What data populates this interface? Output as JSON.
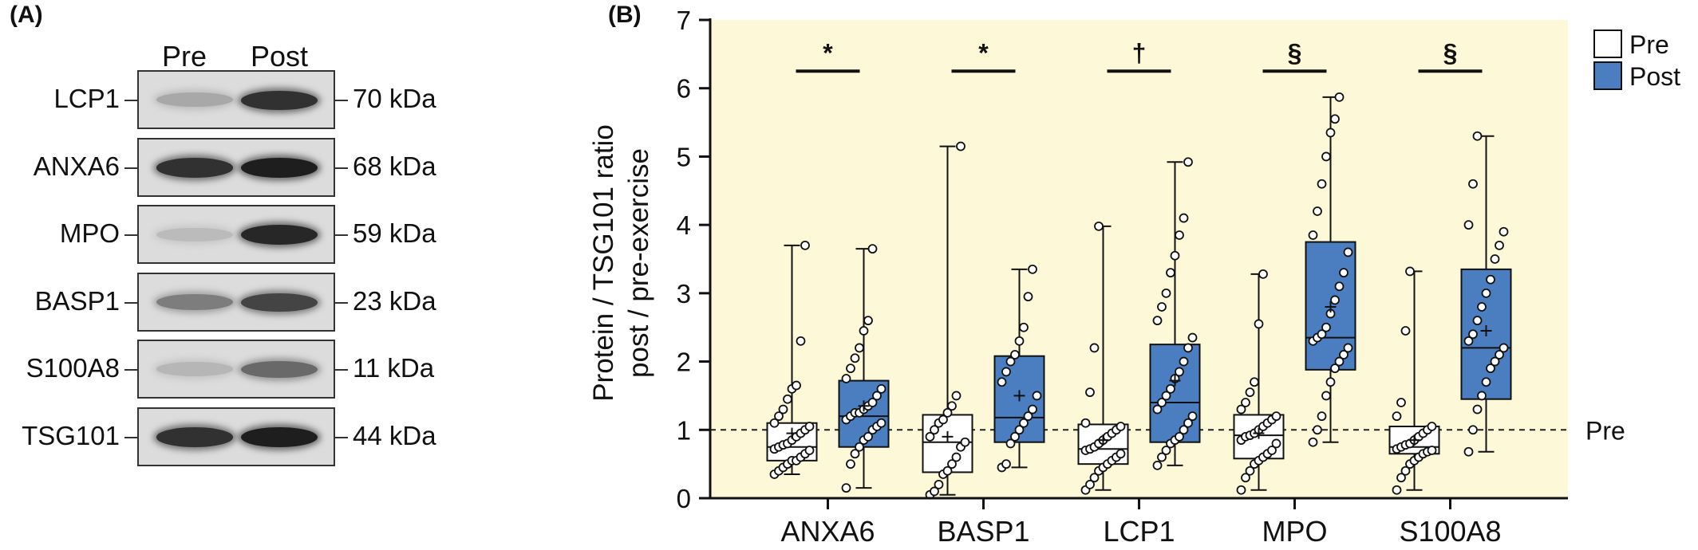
{
  "panel_a": {
    "label": "(A)",
    "lanes": [
      "Pre",
      "Post"
    ],
    "rows": [
      {
        "name": "LCP1",
        "kda": "70 kDa",
        "pre_intensity": 0.22,
        "post_intensity": 0.85
      },
      {
        "name": "ANXA6",
        "kda": "68 kDa",
        "pre_intensity": 0.85,
        "post_intensity": 0.95
      },
      {
        "name": "MPO",
        "kda": "59 kDa",
        "pre_intensity": 0.12,
        "post_intensity": 0.9
      },
      {
        "name": "BASP1",
        "kda": "23 kDa",
        "pre_intensity": 0.45,
        "post_intensity": 0.75
      },
      {
        "name": "S100A8",
        "kda": "11 kDa",
        "pre_intensity": 0.15,
        "post_intensity": 0.55
      },
      {
        "name": "TSG101",
        "kda": "44 kDa",
        "pre_intensity": 0.85,
        "post_intensity": 0.95
      }
    ]
  },
  "chart_data": {
    "panel_label": "(B)",
    "type": "box",
    "ylabel_line1": "Protein / TSG101 ratio",
    "ylabel_line2": "post / pre-exercise",
    "ylim": [
      0,
      7
    ],
    "yticks": [
      "0",
      "1",
      "2",
      "3",
      "4",
      "5",
      "6",
      "7"
    ],
    "reference_line": {
      "y": 1,
      "label": "Pre",
      "style": "dashed"
    },
    "background_color": "#fdf9d8",
    "colors": {
      "pre": "#ffffff",
      "post": "#4a7ec0",
      "edge": "#111111"
    },
    "legend": {
      "position": "top-right",
      "entries": [
        "Pre",
        "Post"
      ]
    },
    "categories": [
      "ANXA6",
      "BASP1",
      "LCP1",
      "MPO",
      "S100A8"
    ],
    "significance": [
      "*",
      "*",
      "†",
      "§",
      "§"
    ],
    "groups": [
      {
        "category": "ANXA6",
        "pre": {
          "min": 0.35,
          "q1": 0.55,
          "median": 0.75,
          "q3": 1.1,
          "max": 3.7,
          "mean": 0.95,
          "points": [
            0.35,
            0.4,
            0.45,
            0.5,
            0.55,
            0.55,
            0.6,
            0.65,
            0.7,
            0.72,
            0.75,
            0.78,
            0.8,
            0.85,
            0.9,
            0.95,
            1.0,
            1.05,
            1.1,
            1.2,
            1.3,
            1.45,
            1.6,
            1.65,
            2.3,
            3.7
          ]
        },
        "post": {
          "min": 0.15,
          "q1": 0.75,
          "median": 1.2,
          "q3": 1.72,
          "max": 3.65,
          "mean": 1.35,
          "points": [
            0.15,
            0.5,
            0.65,
            0.75,
            0.85,
            0.9,
            1.0,
            1.05,
            1.1,
            1.15,
            1.2,
            1.25,
            1.25,
            1.3,
            1.35,
            1.4,
            1.5,
            1.6,
            1.75,
            1.9,
            2.05,
            2.2,
            2.45,
            2.6,
            3.65
          ]
        }
      },
      {
        "category": "BASP1",
        "pre": {
          "min": 0.05,
          "q1": 0.38,
          "median": 0.82,
          "q3": 1.22,
          "max": 5.15,
          "mean": 0.9,
          "points": [
            0.05,
            0.1,
            0.2,
            0.35,
            0.4,
            0.5,
            0.6,
            0.75,
            0.82,
            0.9,
            1.0,
            1.1,
            1.15,
            1.25,
            1.35,
            1.5,
            5.15
          ]
        },
        "post": {
          "min": 0.45,
          "q1": 0.82,
          "median": 1.18,
          "q3": 2.08,
          "max": 3.35,
          "mean": 1.5,
          "points": [
            0.45,
            0.5,
            0.8,
            0.9,
            1.0,
            1.1,
            1.2,
            1.3,
            1.5,
            1.7,
            1.85,
            2.0,
            2.1,
            2.3,
            2.5,
            2.95,
            3.35
          ]
        }
      },
      {
        "category": "LCP1",
        "pre": {
          "min": 0.12,
          "q1": 0.5,
          "median": 0.72,
          "q3": 1.08,
          "max": 3.98,
          "mean": 0.85,
          "points": [
            0.12,
            0.2,
            0.3,
            0.4,
            0.45,
            0.5,
            0.55,
            0.6,
            0.65,
            0.7,
            0.72,
            0.75,
            0.8,
            0.85,
            0.9,
            0.95,
            1.0,
            1.05,
            1.1,
            1.55,
            2.2,
            3.98
          ]
        },
        "post": {
          "min": 0.48,
          "q1": 0.82,
          "median": 1.4,
          "q3": 2.25,
          "max": 4.92,
          "mean": 1.72,
          "points": [
            0.48,
            0.6,
            0.7,
            0.8,
            0.85,
            0.9,
            1.0,
            1.1,
            1.2,
            1.3,
            1.4,
            1.5,
            1.6,
            1.75,
            1.85,
            2.0,
            2.2,
            2.35,
            2.6,
            2.8,
            3.0,
            3.3,
            3.55,
            3.85,
            4.1,
            4.92
          ]
        }
      },
      {
        "category": "MPO",
        "pre": {
          "min": 0.12,
          "q1": 0.58,
          "median": 0.92,
          "q3": 1.22,
          "max": 3.28,
          "mean": 0.95,
          "points": [
            0.12,
            0.3,
            0.4,
            0.5,
            0.55,
            0.6,
            0.65,
            0.7,
            0.8,
            0.85,
            0.9,
            0.92,
            0.95,
            1.0,
            1.05,
            1.1,
            1.15,
            1.2,
            1.3,
            1.4,
            1.55,
            1.7,
            2.55,
            3.28
          ]
        },
        "post": {
          "min": 0.82,
          "q1": 1.88,
          "median": 2.35,
          "q3": 3.75,
          "max": 5.87,
          "mean": 2.8,
          "points": [
            0.82,
            1.0,
            1.2,
            1.5,
            1.7,
            1.9,
            2.0,
            2.1,
            2.2,
            2.3,
            2.35,
            2.4,
            2.5,
            2.7,
            2.9,
            3.1,
            3.3,
            3.6,
            3.85,
            4.2,
            4.6,
            5.0,
            5.35,
            5.55,
            5.87
          ]
        }
      },
      {
        "category": "S100A8",
        "pre": {
          "min": 0.12,
          "q1": 0.65,
          "median": 0.75,
          "q3": 1.05,
          "max": 3.32,
          "mean": 0.85,
          "points": [
            0.12,
            0.3,
            0.4,
            0.5,
            0.55,
            0.6,
            0.65,
            0.68,
            0.7,
            0.72,
            0.75,
            0.78,
            0.8,
            0.85,
            0.9,
            0.95,
            1.0,
            1.05,
            1.2,
            1.4,
            2.45,
            3.32
          ]
        },
        "post": {
          "min": 0.68,
          "q1": 1.45,
          "median": 2.2,
          "q3": 3.35,
          "max": 5.3,
          "mean": 2.45,
          "points": [
            0.68,
            1.0,
            1.3,
            1.5,
            1.7,
            1.9,
            2.0,
            2.1,
            2.2,
            2.3,
            2.4,
            2.6,
            2.8,
            3.0,
            3.2,
            3.5,
            3.7,
            3.9,
            4.0,
            4.6,
            5.3
          ]
        }
      }
    ]
  }
}
